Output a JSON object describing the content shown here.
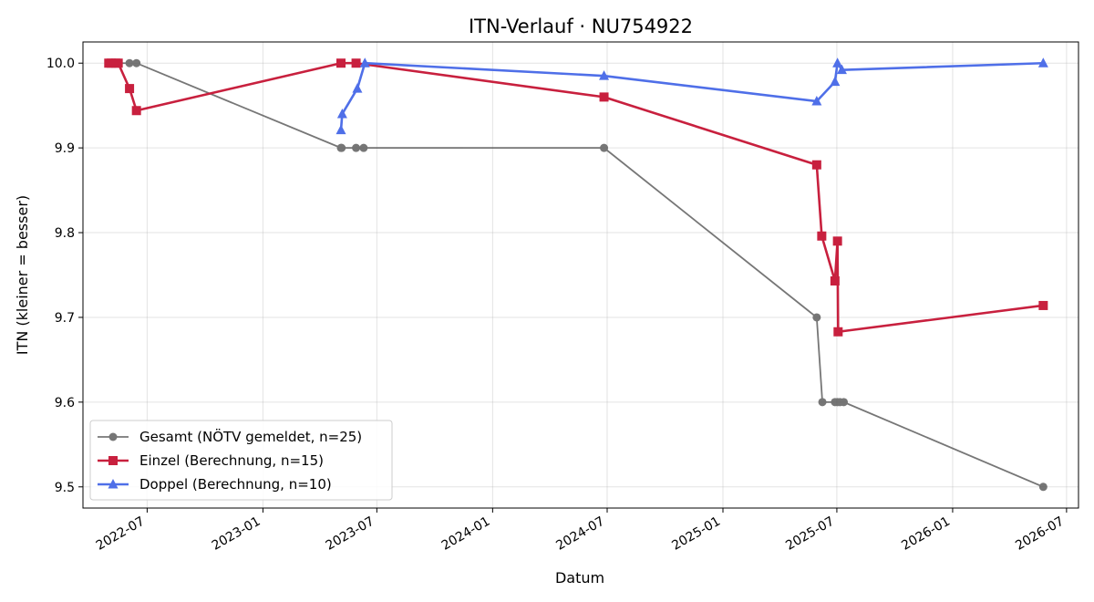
{
  "chart_data": {
    "type": "line",
    "title": "ITN-Verlauf · NU754922",
    "xlabel": "Datum",
    "ylabel": "ITN  (kleiner = besser)",
    "xlim": [
      "2022-03-21",
      "2026-07-20"
    ],
    "ylim": [
      9.475,
      10.025
    ],
    "y_ticks": [
      9.5,
      9.6,
      9.7,
      9.8,
      9.9,
      10.0
    ],
    "y_tick_labels": [
      "9.5",
      "9.6",
      "9.7",
      "9.8",
      "9.9",
      "10.0"
    ],
    "x_ticks": [
      "2022-07-01",
      "2023-01-01",
      "2023-07-01",
      "2024-01-01",
      "2024-07-01",
      "2025-01-01",
      "2025-07-01",
      "2026-01-01",
      "2026-07-01"
    ],
    "x_tick_labels": [
      "2022-07",
      "2023-01",
      "2023-07",
      "2024-01",
      "2024-07",
      "2025-01",
      "2025-07",
      "2026-01",
      "2026-07"
    ],
    "grid": true,
    "legend_position": "lower-left",
    "series": [
      {
        "name": "Gesamt (NÖTV gemeldet, n=25)",
        "color": "#555555",
        "marker": "circle",
        "points": [
          [
            "2022-05-01",
            10.0
          ],
          [
            "2022-05-05",
            10.0
          ],
          [
            "2022-05-09",
            10.0
          ],
          [
            "2022-05-12",
            10.0
          ],
          [
            "2022-06-03",
            10.0
          ],
          [
            "2022-06-14",
            10.0
          ],
          [
            "2023-05-05",
            9.9
          ],
          [
            "2023-05-06",
            9.9
          ],
          [
            "2023-05-29",
            9.9
          ],
          [
            "2023-06-10",
            9.9
          ],
          [
            "2024-06-26",
            9.9
          ],
          [
            "2025-05-30",
            9.7
          ],
          [
            "2025-06-08",
            9.6
          ],
          [
            "2025-06-28",
            9.6
          ],
          [
            "2025-07-02",
            9.6
          ],
          [
            "2025-07-06",
            9.6
          ],
          [
            "2025-07-12",
            9.6
          ],
          [
            "2026-05-25",
            9.5
          ]
        ]
      },
      {
        "name": "Einzel (Berechnung, n=15)",
        "color": "#c8203e",
        "marker": "square",
        "points": [
          [
            "2022-05-01",
            10.0
          ],
          [
            "2022-05-05",
            10.0
          ],
          [
            "2022-05-12",
            10.0
          ],
          [
            "2022-05-16",
            10.0
          ],
          [
            "2022-06-03",
            9.97
          ],
          [
            "2022-06-14",
            9.944
          ],
          [
            "2023-05-05",
            10.0
          ],
          [
            "2023-05-29",
            10.0
          ],
          [
            "2024-06-26",
            9.96
          ],
          [
            "2025-05-30",
            9.88
          ],
          [
            "2025-06-07",
            9.796
          ],
          [
            "2025-06-28",
            9.743
          ],
          [
            "2025-07-02",
            9.79
          ],
          [
            "2025-07-03",
            9.683
          ],
          [
            "2026-05-25",
            9.714
          ]
        ]
      },
      {
        "name": "Doppel (Berechnung, n=10)",
        "color": "#4f6fe8",
        "marker": "triangle",
        "points": [
          [
            "2023-05-05",
            9.921
          ],
          [
            "2023-05-07",
            9.94
          ],
          [
            "2023-05-31",
            9.97
          ],
          [
            "2023-06-12",
            10.0
          ],
          [
            "2024-06-26",
            9.985
          ],
          [
            "2025-05-30",
            9.955
          ],
          [
            "2025-06-28",
            9.978
          ],
          [
            "2025-07-02",
            10.0
          ],
          [
            "2025-07-09",
            9.992
          ],
          [
            "2026-05-25",
            10.0
          ]
        ]
      }
    ]
  }
}
